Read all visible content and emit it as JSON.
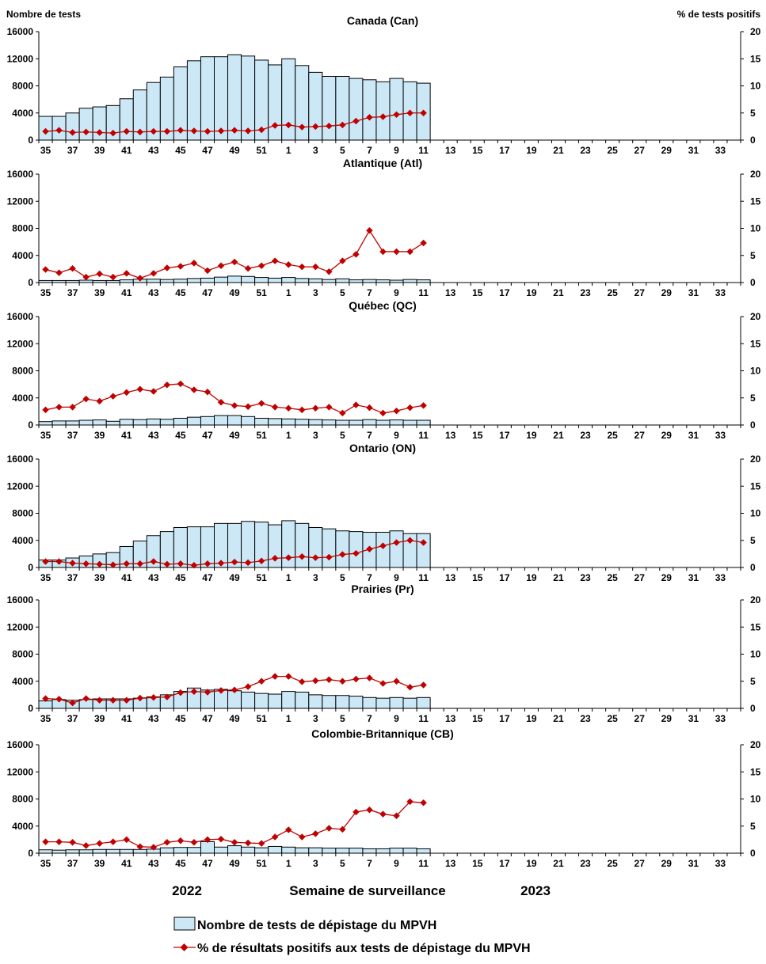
{
  "labels": {
    "y_left": "Nombre de tests",
    "y_right": "% de tests positifs",
    "year_left": "2022",
    "x_axis": "Semaine de surveillance",
    "year_right": "2023"
  },
  "legend": {
    "bars": "Nombre de tests de dépistage du MPVH",
    "line": "% de résultats positifs aux tests de dépistage du MPVH"
  },
  "colors": {
    "bar_fill": "#cce8f6",
    "bar_stroke": "#000000",
    "line": "#c00000"
  },
  "chart_data": [
    {
      "type": "bar+line",
      "title": "Canada (Can)",
      "categories": [
        "35",
        "36",
        "37",
        "38",
        "39",
        "40",
        "41",
        "42",
        "43",
        "44",
        "45",
        "46",
        "47",
        "48",
        "49",
        "50",
        "51",
        "52",
        "1",
        "2",
        "3",
        "4",
        "5",
        "6",
        "7",
        "8",
        "9",
        "10",
        "11",
        "12",
        "13",
        "14",
        "15",
        "16",
        "17",
        "18",
        "19",
        "20",
        "21",
        "22",
        "23",
        "24",
        "25",
        "26",
        "27",
        "28",
        "29",
        "30",
        "31",
        "32",
        "33",
        "34"
      ],
      "x_tick_labels": [
        "35",
        "37",
        "39",
        "41",
        "43",
        "45",
        "47",
        "49",
        "51",
        "1",
        "3",
        "5",
        "7",
        "9",
        "11",
        "13",
        "15",
        "17",
        "19",
        "21",
        "23",
        "25",
        "27",
        "29",
        "31",
        "33"
      ],
      "y_left_ticks": [
        "0",
        "4000",
        "8000",
        "12000",
        "16000"
      ],
      "y_right_ticks": [
        "0",
        "5",
        "10",
        "15",
        "20"
      ],
      "ylim_left": [
        0,
        16000
      ],
      "ylim_right": [
        0,
        20
      ],
      "tests": [
        3500,
        3500,
        4000,
        4700,
        4900,
        5100,
        6100,
        7400,
        8500,
        9300,
        10800,
        11700,
        12300,
        12300,
        12600,
        12400,
        11800,
        11100,
        12000,
        11000,
        10000,
        9400,
        9400,
        9100,
        8900,
        8600,
        9100,
        8600,
        8400
      ],
      "pct_positive": [
        1.6,
        1.8,
        1.4,
        1.5,
        1.4,
        1.3,
        1.6,
        1.5,
        1.6,
        1.6,
        1.8,
        1.7,
        1.6,
        1.7,
        1.8,
        1.7,
        1.9,
        2.7,
        2.8,
        2.4,
        2.5,
        2.6,
        2.8,
        3.5,
        4.2,
        4.3,
        4.7,
        5.0,
        5.0
      ]
    },
    {
      "type": "bar+line",
      "title": "Atlantique (Atl)",
      "categories": [
        "35",
        "36",
        "37",
        "38",
        "39",
        "40",
        "41",
        "42",
        "43",
        "44",
        "45",
        "46",
        "47",
        "48",
        "49",
        "50",
        "51",
        "52",
        "1",
        "2",
        "3",
        "4",
        "5",
        "6",
        "7",
        "8",
        "9",
        "10",
        "11",
        "12",
        "13",
        "14",
        "15",
        "16",
        "17",
        "18",
        "19",
        "20",
        "21",
        "22",
        "23",
        "24",
        "25",
        "26",
        "27",
        "28",
        "29",
        "30",
        "31",
        "32",
        "33",
        "34"
      ],
      "x_tick_labels": [
        "35",
        "37",
        "39",
        "41",
        "43",
        "45",
        "47",
        "49",
        "51",
        "1",
        "3",
        "5",
        "7",
        "9",
        "11",
        "13",
        "15",
        "17",
        "19",
        "21",
        "23",
        "25",
        "27",
        "29",
        "31",
        "33"
      ],
      "y_left_ticks": [
        "0",
        "4000",
        "8000",
        "12000",
        "16000"
      ],
      "y_right_ticks": [
        "0",
        "5",
        "10",
        "15",
        "20"
      ],
      "ylim_left": [
        0,
        16000
      ],
      "ylim_right": [
        0,
        20
      ],
      "tests": [
        300,
        300,
        300,
        350,
        300,
        300,
        400,
        500,
        500,
        450,
        500,
        600,
        650,
        800,
        950,
        900,
        750,
        650,
        750,
        600,
        550,
        450,
        550,
        400,
        450,
        400,
        350,
        450,
        400
      ],
      "pct_positive": [
        2.4,
        1.8,
        2.6,
        1.0,
        1.6,
        1.0,
        1.7,
        0.8,
        1.7,
        2.7,
        3.0,
        3.6,
        2.2,
        3.1,
        3.8,
        2.6,
        3.1,
        4.0,
        3.3,
        2.9,
        2.9,
        2.0,
        4.0,
        5.2,
        9.6,
        5.7,
        5.7,
        5.7,
        7.3
      ]
    },
    {
      "type": "bar+line",
      "title": "Québec (QC)",
      "categories": [
        "35",
        "36",
        "37",
        "38",
        "39",
        "40",
        "41",
        "42",
        "43",
        "44",
        "45",
        "46",
        "47",
        "48",
        "49",
        "50",
        "51",
        "52",
        "1",
        "2",
        "3",
        "4",
        "5",
        "6",
        "7",
        "8",
        "9",
        "10",
        "11",
        "12",
        "13",
        "14",
        "15",
        "16",
        "17",
        "18",
        "19",
        "20",
        "21",
        "22",
        "23",
        "24",
        "25",
        "26",
        "27",
        "28",
        "29",
        "30",
        "31",
        "32",
        "33",
        "34"
      ],
      "x_tick_labels": [
        "35",
        "37",
        "39",
        "41",
        "43",
        "45",
        "47",
        "49",
        "51",
        "1",
        "3",
        "5",
        "7",
        "9",
        "11",
        "13",
        "15",
        "17",
        "19",
        "21",
        "23",
        "25",
        "27",
        "29",
        "31",
        "33"
      ],
      "y_left_ticks": [
        "0",
        "4000",
        "8000",
        "12000",
        "16000"
      ],
      "y_right_ticks": [
        "0",
        "5",
        "10",
        "15",
        "20"
      ],
      "ylim_left": [
        0,
        16000
      ],
      "ylim_right": [
        0,
        20
      ],
      "tests": [
        500,
        600,
        600,
        700,
        750,
        550,
        850,
        800,
        900,
        850,
        1000,
        1150,
        1250,
        1400,
        1400,
        1250,
        1000,
        950,
        900,
        850,
        800,
        750,
        700,
        700,
        800,
        700,
        750,
        700,
        700
      ],
      "pct_positive": [
        2.8,
        3.3,
        3.3,
        4.8,
        4.4,
        5.3,
        6.0,
        6.6,
        6.2,
        7.4,
        7.6,
        6.5,
        6.1,
        4.2,
        3.6,
        3.4,
        4.0,
        3.3,
        3.1,
        2.8,
        3.1,
        3.3,
        2.2,
        3.7,
        3.2,
        2.2,
        2.6,
        3.2,
        3.6
      ]
    },
    {
      "type": "bar+line",
      "title": "Ontario (ON)",
      "categories": [
        "35",
        "36",
        "37",
        "38",
        "39",
        "40",
        "41",
        "42",
        "43",
        "44",
        "45",
        "46",
        "47",
        "48",
        "49",
        "50",
        "51",
        "52",
        "1",
        "2",
        "3",
        "4",
        "5",
        "6",
        "7",
        "8",
        "9",
        "10",
        "11",
        "12",
        "13",
        "14",
        "15",
        "16",
        "17",
        "18",
        "19",
        "20",
        "21",
        "22",
        "23",
        "24",
        "25",
        "26",
        "27",
        "28",
        "29",
        "30",
        "31",
        "32",
        "33",
        "34"
      ],
      "x_tick_labels": [
        "35",
        "37",
        "39",
        "41",
        "43",
        "45",
        "47",
        "49",
        "51",
        "1",
        "3",
        "5",
        "7",
        "9",
        "11",
        "13",
        "15",
        "17",
        "19",
        "21",
        "23",
        "25",
        "27",
        "29",
        "31",
        "33"
      ],
      "y_left_ticks": [
        "0",
        "4000",
        "8000",
        "12000",
        "16000"
      ],
      "y_right_ticks": [
        "0",
        "5",
        "10",
        "15",
        "20"
      ],
      "ylim_left": [
        0,
        16000
      ],
      "ylim_right": [
        0,
        20
      ],
      "tests": [
        1100,
        1100,
        1400,
        1700,
        2000,
        2200,
        3100,
        3900,
        4700,
        5300,
        5900,
        6000,
        6000,
        6500,
        6500,
        6800,
        6700,
        6300,
        6900,
        6500,
        5900,
        5700,
        5400,
        5300,
        5200,
        5200,
        5400,
        5000,
        5000
      ],
      "pct_positive": [
        1.1,
        1.1,
        0.8,
        0.7,
        0.6,
        0.5,
        0.7,
        0.7,
        1.1,
        0.6,
        0.7,
        0.4,
        0.7,
        0.8,
        1.0,
        0.9,
        1.2,
        1.7,
        1.8,
        2.0,
        1.8,
        1.9,
        2.4,
        2.6,
        3.4,
        4.0,
        4.6,
        5.0,
        4.6
      ]
    },
    {
      "type": "bar+line",
      "title": "Prairies (Pr)",
      "categories": [
        "35",
        "36",
        "37",
        "38",
        "39",
        "40",
        "41",
        "42",
        "43",
        "44",
        "45",
        "46",
        "47",
        "48",
        "49",
        "50",
        "51",
        "52",
        "1",
        "2",
        "3",
        "4",
        "5",
        "6",
        "7",
        "8",
        "9",
        "10",
        "11",
        "12",
        "13",
        "14",
        "15",
        "16",
        "17",
        "18",
        "19",
        "20",
        "21",
        "22",
        "23",
        "24",
        "25",
        "26",
        "27",
        "28",
        "29",
        "30",
        "31",
        "32",
        "33",
        "34"
      ],
      "x_tick_labels": [
        "35",
        "37",
        "39",
        "41",
        "43",
        "45",
        "47",
        "49",
        "51",
        "1",
        "3",
        "5",
        "7",
        "9",
        "11",
        "13",
        "15",
        "17",
        "19",
        "21",
        "23",
        "25",
        "27",
        "29",
        "31",
        "33"
      ],
      "y_left_ticks": [
        "0",
        "4000",
        "8000",
        "12000",
        "16000"
      ],
      "y_right_ticks": [
        "0",
        "5",
        "10",
        "15",
        "20"
      ],
      "ylim_left": [
        0,
        16000
      ],
      "ylim_right": [
        0,
        20
      ],
      "tests": [
        1100,
        1300,
        1200,
        1300,
        1400,
        1400,
        1400,
        1500,
        1700,
        2000,
        2500,
        3000,
        2700,
        2800,
        2600,
        2400,
        2200,
        2100,
        2500,
        2400,
        2000,
        1900,
        1900,
        1800,
        1600,
        1500,
        1600,
        1500,
        1600
      ],
      "pct_positive": [
        1.8,
        1.7,
        1.0,
        1.8,
        1.5,
        1.5,
        1.5,
        1.9,
        2.0,
        2.1,
        2.9,
        3.1,
        3.0,
        3.3,
        3.4,
        4.0,
        5.0,
        5.9,
        5.9,
        4.9,
        5.1,
        5.3,
        5.0,
        5.4,
        5.6,
        4.6,
        5.0,
        3.9,
        4.3
      ]
    },
    {
      "type": "bar+line",
      "title": "Colombie-Britannique (CB)",
      "categories": [
        "35",
        "36",
        "37",
        "38",
        "39",
        "40",
        "41",
        "42",
        "43",
        "44",
        "45",
        "46",
        "47",
        "48",
        "49",
        "50",
        "51",
        "52",
        "1",
        "2",
        "3",
        "4",
        "5",
        "6",
        "7",
        "8",
        "9",
        "10",
        "11",
        "12",
        "13",
        "14",
        "15",
        "16",
        "17",
        "18",
        "19",
        "20",
        "21",
        "22",
        "23",
        "24",
        "25",
        "26",
        "27",
        "28",
        "29",
        "30",
        "31",
        "32",
        "33",
        "34"
      ],
      "x_tick_labels": [
        "35",
        "37",
        "39",
        "41",
        "43",
        "45",
        "47",
        "49",
        "51",
        "1",
        "3",
        "5",
        "7",
        "9",
        "11",
        "13",
        "15",
        "17",
        "19",
        "21",
        "23",
        "25",
        "27",
        "29",
        "31",
        "33"
      ],
      "y_left_ticks": [
        "0",
        "4000",
        "8000",
        "12000",
        "16000"
      ],
      "y_right_ticks": [
        "0",
        "5",
        "10",
        "15",
        "20"
      ],
      "ylim_left": [
        0,
        16000
      ],
      "ylim_right": [
        0,
        20
      ],
      "tests": [
        500,
        450,
        500,
        500,
        550,
        550,
        550,
        550,
        600,
        800,
        850,
        850,
        1700,
        900,
        1100,
        900,
        800,
        1000,
        900,
        800,
        800,
        750,
        750,
        750,
        650,
        650,
        750,
        750,
        650
      ],
      "pct_positive": [
        2.1,
        2.1,
        2.0,
        1.4,
        1.8,
        2.1,
        2.5,
        1.2,
        1.1,
        2.0,
        2.3,
        2.0,
        2.5,
        2.6,
        2.0,
        1.9,
        1.8,
        3.0,
        4.3,
        3.0,
        3.6,
        4.6,
        4.4,
        7.6,
        8.0,
        7.2,
        6.9,
        9.5,
        9.3
      ]
    }
  ]
}
